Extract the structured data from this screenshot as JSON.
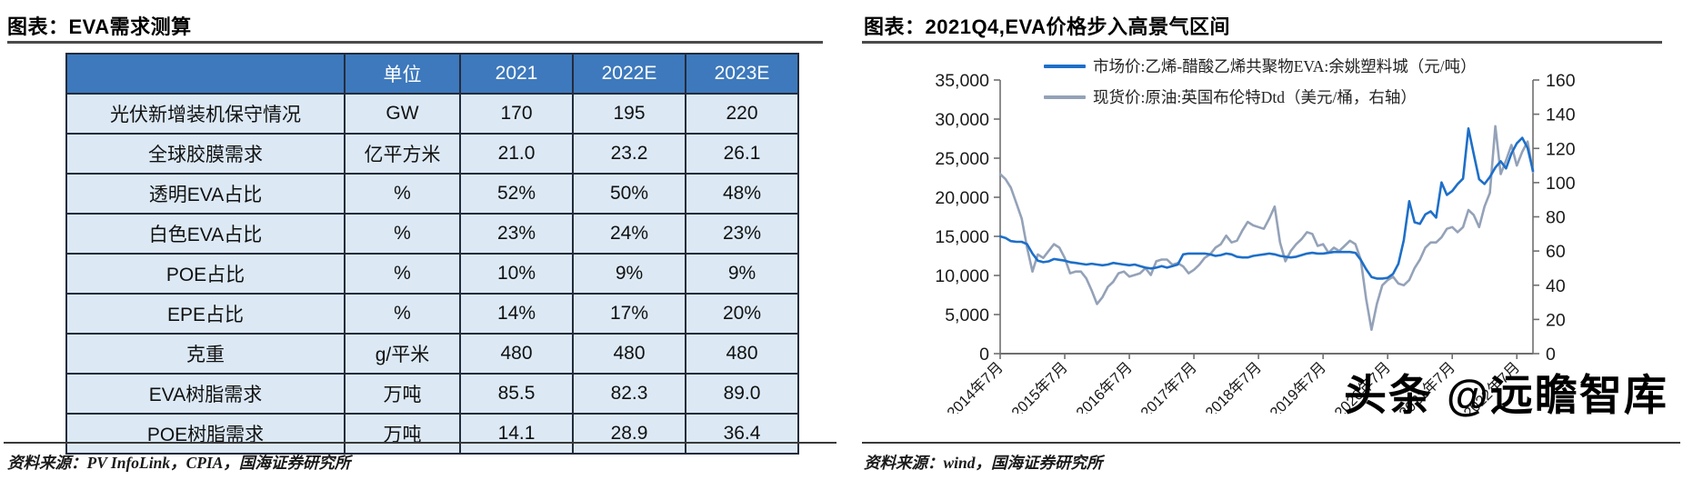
{
  "left_panel": {
    "title": "图表：EVA需求测算",
    "source": "资料来源：PV InfoLink，CPIA，国海证券研究所",
    "table": {
      "headers": [
        "",
        "单位",
        "2021",
        "2022E",
        "2023E"
      ],
      "rows": [
        [
          "光伏新增装机保守情况",
          "GW",
          "170",
          "195",
          "220"
        ],
        [
          "全球胶膜需求",
          "亿平方米",
          "21.0",
          "23.2",
          "26.1"
        ],
        [
          "透明EVA占比",
          "%",
          "52%",
          "50%",
          "48%"
        ],
        [
          "白色EVA占比",
          "%",
          "23%",
          "24%",
          "23%"
        ],
        [
          "POE占比",
          "%",
          "10%",
          "9%",
          "9%"
        ],
        [
          "EPE占比",
          "%",
          "14%",
          "17%",
          "20%"
        ],
        [
          "克重",
          "g/平米",
          "480",
          "480",
          "480"
        ],
        [
          "EVA树脂需求",
          "万吨",
          "85.5",
          "82.3",
          "89.0"
        ],
        [
          "POE树脂需求",
          "万吨",
          "14.1",
          "28.9",
          "36.4"
        ]
      ],
      "header_bg": "#3d79bc",
      "row_bg": "#dce9f5"
    }
  },
  "right_panel": {
    "title": "图表：2021Q4,EVA价格步入高景气区间",
    "source": "资料来源：wind，国海证券研究所",
    "watermark": "头条 @远瞻智库"
  },
  "chart_data": {
    "type": "line",
    "title": "2021Q4,EVA价格步入高景气区间",
    "x_start": "2014-07",
    "x_end": "2022-10",
    "x_tick_indexes": [
      0,
      12,
      24,
      36,
      48,
      60,
      72,
      84,
      96
    ],
    "x_tick_labels": [
      "2014年7月",
      "2015年7月",
      "2016年7月",
      "2017年7月",
      "2018年7月",
      "2019年7月",
      "2020年7月",
      "2021年7月",
      "2022年7月"
    ],
    "left_axis": {
      "min": 0,
      "max": 35000,
      "tick_labels": [
        "35,000",
        "30,000",
        "25,000",
        "20,000",
        "15,000",
        "10,000",
        "5,000",
        "0"
      ]
    },
    "right_axis": {
      "min": 0,
      "max": 160,
      "tick_labels": [
        "160",
        "140",
        "120",
        "100",
        "80",
        "60",
        "40",
        "20",
        "0"
      ]
    },
    "grid": false,
    "legend_position": "top",
    "series": [
      {
        "name": "市场价:乙烯-醋酸乙烯共聚物EVA:余姚塑料城（元/吨）",
        "axis": "left",
        "color": "#1e6fc8",
        "values": [
          15000,
          14800,
          14400,
          14300,
          14300,
          14000,
          12800,
          11900,
          11700,
          11800,
          12100,
          12000,
          11900,
          11700,
          11600,
          11500,
          11400,
          11500,
          11400,
          11300,
          11400,
          11600,
          11500,
          11400,
          11300,
          11400,
          11200,
          11000,
          10900,
          11000,
          11200,
          11000,
          11200,
          11400,
          12700,
          12800,
          12800,
          12800,
          12800,
          12700,
          12500,
          12600,
          12800,
          12700,
          12400,
          12300,
          12300,
          12500,
          12600,
          12700,
          12800,
          12700,
          12500,
          12400,
          12300,
          12400,
          12600,
          12800,
          12900,
          12800,
          12800,
          12900,
          13000,
          13000,
          13000,
          13000,
          12900,
          12000,
          10800,
          9800,
          9600,
          9600,
          9700,
          10200,
          11500,
          14500,
          19500,
          16800,
          16600,
          17800,
          18200,
          17400,
          21900,
          20300,
          20800,
          21700,
          22400,
          28800,
          25500,
          22300,
          21700,
          22600,
          23800,
          24600,
          23700,
          25600,
          26900,
          27600,
          26300,
          23400
        ]
      },
      {
        "name": "现货价:原油:英国布伦特Dtd（美元/桶，右轴）",
        "axis": "right",
        "color": "#94a2b8",
        "values": [
          105,
          102,
          97,
          88,
          79,
          62,
          48,
          58,
          56,
          60,
          64,
          62,
          56,
          47,
          48,
          48,
          44,
          37,
          29,
          33,
          39,
          42,
          47,
          48,
          45,
          46,
          47,
          50,
          46,
          54,
          55,
          55,
          52,
          53,
          51,
          47,
          49,
          52,
          56,
          58,
          62,
          64,
          69,
          65,
          66,
          72,
          77,
          75,
          74,
          73,
          79,
          86,
          65,
          54,
          60,
          64,
          67,
          71,
          70,
          63,
          64,
          59,
          62,
          60,
          63,
          66,
          64,
          55,
          32,
          14,
          29,
          40,
          43,
          45,
          41,
          40,
          43,
          50,
          55,
          62,
          65,
          65,
          68,
          73,
          74,
          71,
          74,
          84,
          81,
          74,
          86,
          94,
          133,
          105,
          113,
          122,
          110,
          118,
          124,
          106
        ]
      }
    ]
  }
}
